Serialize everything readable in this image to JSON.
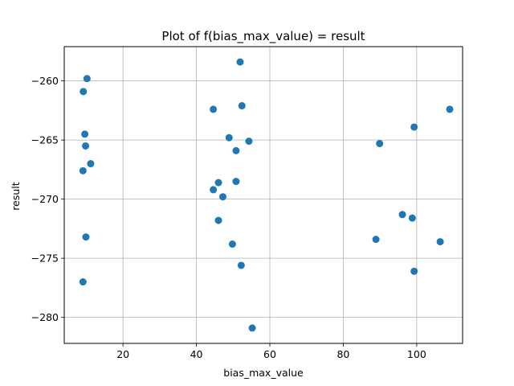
{
  "chart_data": {
    "type": "scatter",
    "title": "Plot of f(bias_max_value) = result",
    "xlabel": "bias_max_value",
    "ylabel": "result",
    "xlim": [
      4,
      112.5
    ],
    "ylim": [
      -282.2,
      -257.1
    ],
    "xticks": [
      20,
      40,
      60,
      80,
      100
    ],
    "yticks": [
      -260,
      -265,
      -270,
      -275,
      -280
    ],
    "grid": true,
    "marker_color": "#1f77b4",
    "points": [
      {
        "x": 10.2,
        "y": -259.8
      },
      {
        "x": 9.2,
        "y": -260.9
      },
      {
        "x": 9.6,
        "y": -264.5
      },
      {
        "x": 9.8,
        "y": -265.5
      },
      {
        "x": 11.2,
        "y": -267.0
      },
      {
        "x": 9.1,
        "y": -267.6
      },
      {
        "x": 9.9,
        "y": -273.2
      },
      {
        "x": 9.1,
        "y": -277.0
      },
      {
        "x": 51.9,
        "y": -258.4
      },
      {
        "x": 44.6,
        "y": -262.4
      },
      {
        "x": 52.4,
        "y": -262.1
      },
      {
        "x": 48.9,
        "y": -264.8
      },
      {
        "x": 54.3,
        "y": -265.1
      },
      {
        "x": 50.8,
        "y": -265.9
      },
      {
        "x": 46.0,
        "y": -268.6
      },
      {
        "x": 50.8,
        "y": -268.5
      },
      {
        "x": 44.6,
        "y": -269.2
      },
      {
        "x": 47.2,
        "y": -269.8
      },
      {
        "x": 46.0,
        "y": -271.8
      },
      {
        "x": 49.8,
        "y": -273.8
      },
      {
        "x": 52.2,
        "y": -275.6
      },
      {
        "x": 55.2,
        "y": -280.9
      },
      {
        "x": 109.0,
        "y": -262.4
      },
      {
        "x": 99.3,
        "y": -263.9
      },
      {
        "x": 89.9,
        "y": -265.3
      },
      {
        "x": 96.1,
        "y": -271.3
      },
      {
        "x": 98.8,
        "y": -271.6
      },
      {
        "x": 88.9,
        "y": -273.4
      },
      {
        "x": 106.4,
        "y": -273.6
      },
      {
        "x": 99.3,
        "y": -276.1
      }
    ]
  }
}
